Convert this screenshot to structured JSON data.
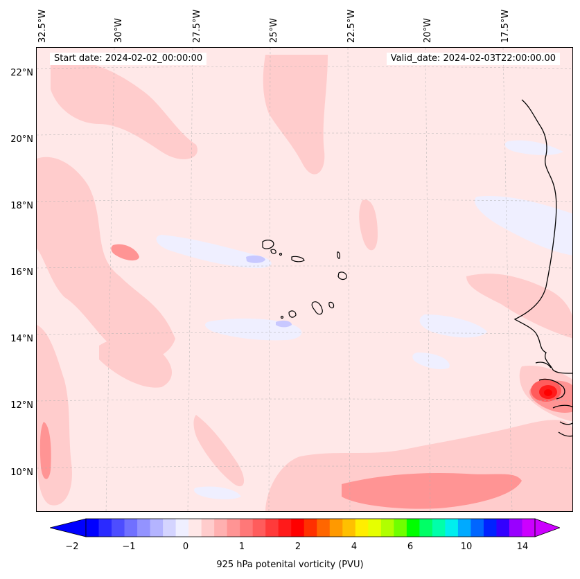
{
  "header": {
    "start_date": "Start date: 2024-02-02_00:00:00",
    "valid_date": "Valid_date: 2024-02-03T22:00:00.00"
  },
  "longitude_labels": [
    "32.5°W",
    "30°W",
    "27.5°W",
    "25°W",
    "22.5°W",
    "20°W",
    "17.5°W"
  ],
  "latitude_labels": [
    "22°N",
    "20°N",
    "18°N",
    "16°N",
    "14°N",
    "12°N",
    "10°N"
  ],
  "colorbar": {
    "label": "925 hPa potenital vorticity (PVU)",
    "tick_labels": [
      "−2",
      "−1",
      "0",
      "1",
      "2",
      "4",
      "6",
      "10",
      "14"
    ],
    "colors": [
      "#0000ff",
      "#2a2aff",
      "#4d4dff",
      "#7070ff",
      "#9393ff",
      "#b4b4ff",
      "#d4d4ff",
      "#efefff",
      "#ffe8e8",
      "#ffcccc",
      "#ffb0b0",
      "#ff9494",
      "#ff7878",
      "#ff5c5c",
      "#ff3a3a",
      "#ff1a1a",
      "#ff0000",
      "#ff3000",
      "#ff6600",
      "#ff9900",
      "#ffc000",
      "#ffee00",
      "#e6ff00",
      "#b0ff00",
      "#70ff00",
      "#00ff00",
      "#00ff66",
      "#00ffaa",
      "#00eeee",
      "#00aaff",
      "#0066ff",
      "#0022ff",
      "#3300ff",
      "#9900ff",
      "#cc00ff"
    ],
    "extend_low": "#0000ff",
    "extend_high": "#cc00ff"
  },
  "colors": {
    "background_field": "#ffe8e8",
    "positive_light": "#ffcccc",
    "positive_mid": "#ff9494",
    "positive_strong": "#ff1a1a",
    "negative_light": "#efefff",
    "negative_mid": "#d4d4ff",
    "coastline": "#000000"
  }
}
